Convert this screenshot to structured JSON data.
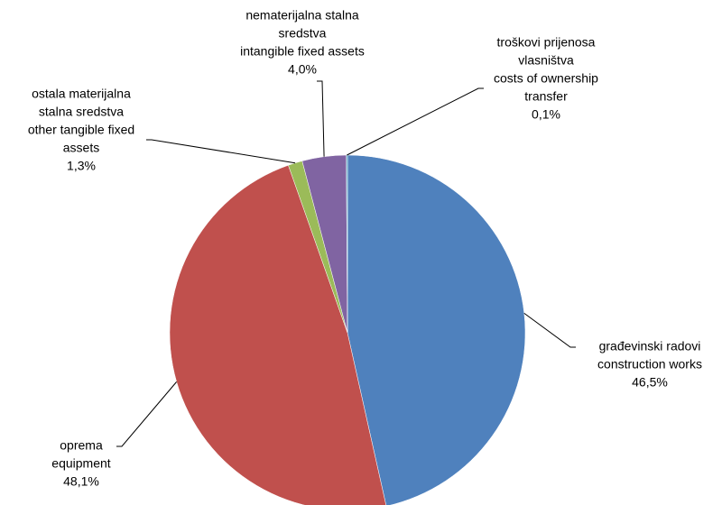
{
  "chart_data": {
    "type": "pie",
    "categories": [
      [
        "građevinski radovi",
        "construction works"
      ],
      [
        "oprema",
        "equipment"
      ],
      [
        "ostala materijalna",
        "stalna sredstva",
        "other tangible fixed",
        "assets"
      ],
      [
        "nematerijalna stalna",
        "sredstva",
        "intangible fixed assets"
      ],
      [
        "troškovi prijenosa",
        "vlasništva",
        "costs of ownership",
        "transfer"
      ]
    ],
    "values": [
      46.5,
      48.1,
      1.3,
      4.0,
      0.1
    ],
    "value_labels": [
      "46,5%",
      "48,1%",
      "1,3%",
      "4,0%",
      "0,1%"
    ],
    "colors": [
      "#4f81bd",
      "#c0504d",
      "#9bbb59",
      "#8064a2",
      "#4bacc6"
    ]
  }
}
